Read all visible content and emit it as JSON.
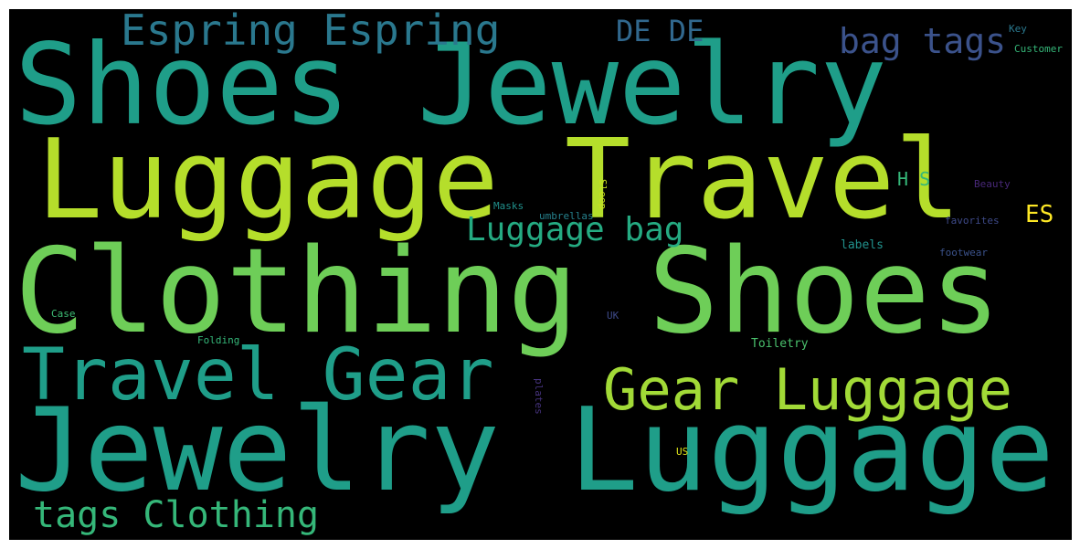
{
  "background": "#000000",
  "words": [
    {
      "text": "Shoes Jewelry",
      "color": "#1f9e89"
    },
    {
      "text": "Luggage Travel",
      "color": "#b5de2b"
    },
    {
      "text": "Clothing Shoes",
      "color": "#6ece58"
    },
    {
      "text": "Jewelry Luggage",
      "color": "#1f9e89"
    },
    {
      "text": "Travel Gear",
      "color": "#1f9e89"
    },
    {
      "text": "Gear Luggage",
      "color": "#a2da37"
    },
    {
      "text": "Espring Espring",
      "color": "#2a788e"
    },
    {
      "text": "bag tags",
      "color": "#3b528b"
    },
    {
      "text": "DE DE",
      "color": "#31688e"
    },
    {
      "text": "Luggage bag",
      "color": "#25ab82"
    },
    {
      "text": "tags Clothing",
      "color": "#35b779"
    },
    {
      "text": "ES",
      "color": "#fde725"
    },
    {
      "text": "H S",
      "color": "#35b779"
    },
    {
      "text": "Key",
      "color": "#2a788e"
    },
    {
      "text": "Customer",
      "color": "#35b779"
    },
    {
      "text": "Beauty",
      "color": "#482878"
    },
    {
      "text": "favorites",
      "color": "#3e4a89"
    },
    {
      "text": "labels",
      "color": "#21918c"
    },
    {
      "text": "footwear",
      "color": "#3b528b"
    },
    {
      "text": "Masks",
      "color": "#21918c"
    },
    {
      "text": "umbrellas",
      "color": "#26828e"
    },
    {
      "text": "Sleep",
      "color": "#c8e020"
    },
    {
      "text": "Case",
      "color": "#3dbc74"
    },
    {
      "text": "Folding",
      "color": "#35b779"
    },
    {
      "text": "UK",
      "color": "#3e4a89"
    },
    {
      "text": "Toiletry",
      "color": "#4ac16d"
    },
    {
      "text": "plates",
      "color": "#46337e"
    },
    {
      "text": "US",
      "color": "#dce319"
    }
  ]
}
